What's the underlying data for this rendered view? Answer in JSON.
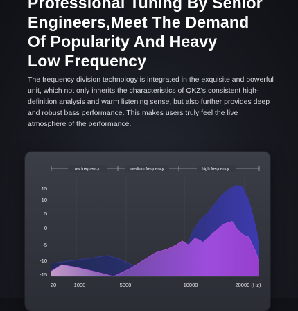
{
  "headline": {
    "lines": [
      "Professional Tuning By Senior",
      "Engineers,Meet The Demand",
      "Of Popularity And Heavy",
      "Low Frequency"
    ]
  },
  "body_text": "The frequency division technology is integrated in the exquisite and powerful unit, which not only inherits the characteristics of QKZ's consistent high-definition analysis and warm listening sense, but also further provides deep and robust bass performance. This makes users truly feel the live atmosphere of the performance.",
  "chart_data": {
    "type": "area",
    "bands": [
      "Low frequency",
      "medium frequency",
      "high frequency"
    ],
    "x_ticks": [
      "20",
      "1000",
      "5000",
      "10000",
      "20000 (Hz)"
    ],
    "y_ticks": [
      "15",
      "10",
      "5",
      "0",
      "-5",
      "-10",
      "-15"
    ],
    "ylim": [
      -20,
      17
    ],
    "series": [
      {
        "color": "#3b39a8",
        "points": [
          [
            0,
            -15
          ],
          [
            0.1,
            -14
          ],
          [
            0.2,
            -13
          ],
          [
            0.27,
            -12
          ],
          [
            0.33,
            -13.5
          ],
          [
            0.4,
            -16
          ],
          [
            0.47,
            -15
          ],
          [
            0.52,
            -13
          ],
          [
            0.58,
            -11
          ],
          [
            0.62,
            -10
          ],
          [
            0.66,
            -7
          ],
          [
            0.68,
            -3
          ],
          [
            0.71,
            1
          ],
          [
            0.75,
            4
          ],
          [
            0.78,
            7
          ],
          [
            0.82,
            11
          ],
          [
            0.86,
            13.5
          ],
          [
            0.89,
            14.8
          ],
          [
            0.92,
            14.2
          ],
          [
            0.95,
            9
          ],
          [
            0.975,
            2
          ],
          [
            1.0,
            -7
          ]
        ]
      },
      {
        "color": "#b94fe4",
        "points": [
          [
            0,
            -18
          ],
          [
            0.05,
            -15.5
          ],
          [
            0.12,
            -16.5
          ],
          [
            0.2,
            -18
          ],
          [
            0.25,
            -19
          ],
          [
            0.3,
            -20
          ],
          [
            0.38,
            -17
          ],
          [
            0.44,
            -14
          ],
          [
            0.5,
            -11
          ],
          [
            0.56,
            -9.5
          ],
          [
            0.6,
            -8
          ],
          [
            0.63,
            -6.5
          ],
          [
            0.66,
            -8
          ],
          [
            0.69,
            -5.5
          ],
          [
            0.71,
            -6
          ],
          [
            0.73,
            -7
          ],
          [
            0.77,
            -4
          ],
          [
            0.8,
            -2
          ],
          [
            0.83,
            0
          ],
          [
            0.87,
            1
          ],
          [
            0.89,
            -1.5
          ],
          [
            0.92,
            -4
          ],
          [
            0.95,
            -5
          ],
          [
            0.98,
            -10
          ],
          [
            1.0,
            -14
          ]
        ]
      }
    ]
  }
}
